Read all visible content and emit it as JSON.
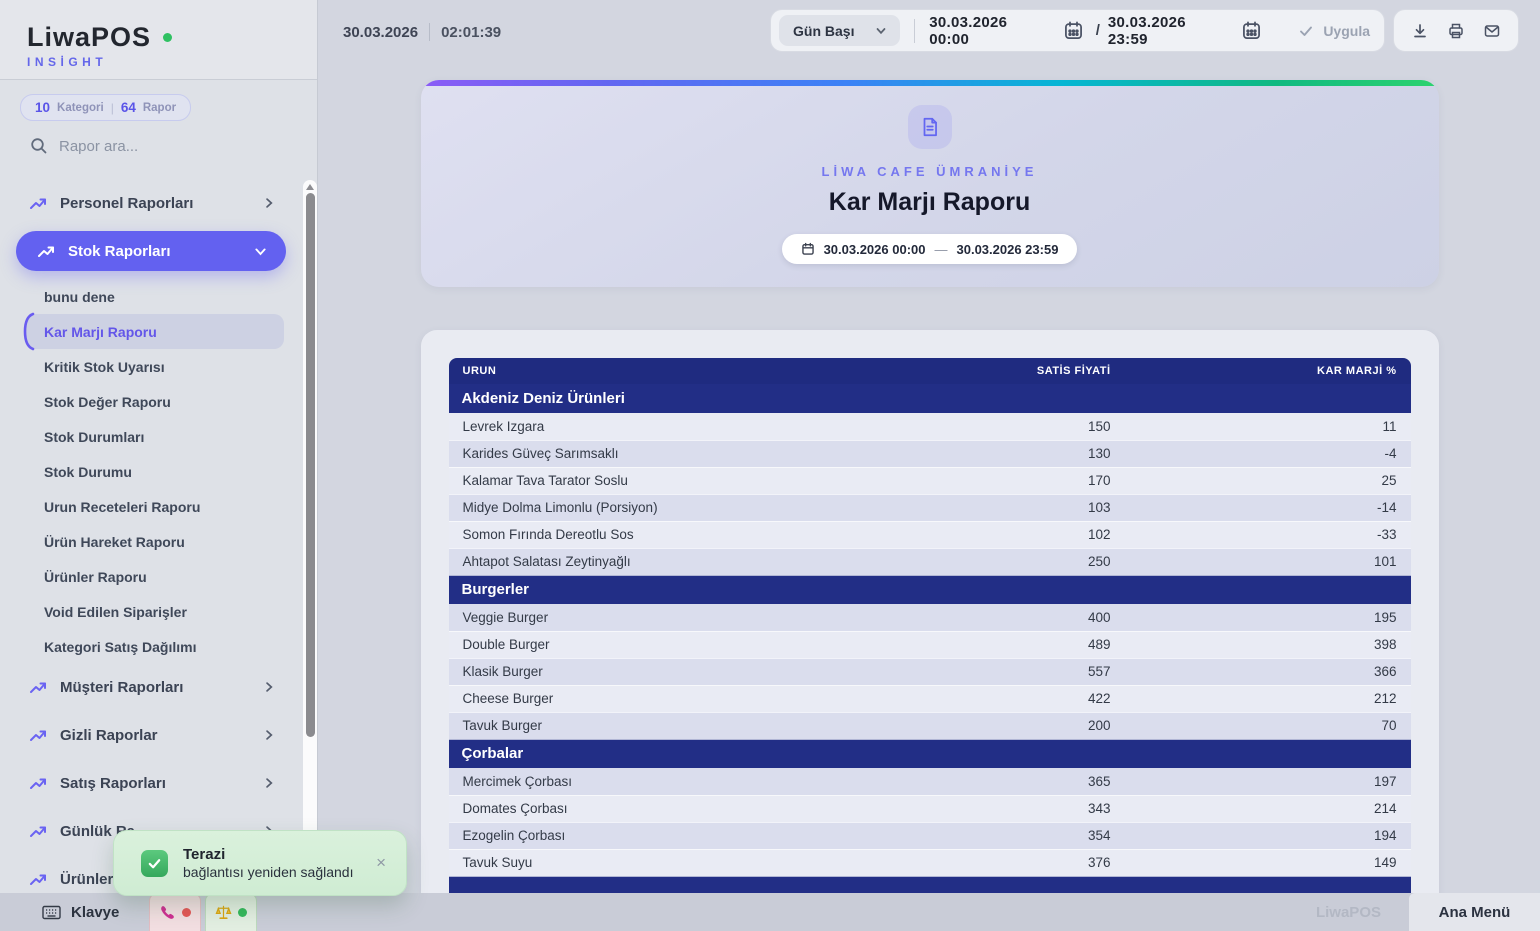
{
  "sidebar": {
    "logo": {
      "brand": "LiwaPOS",
      "sub": "INSİGHT"
    },
    "stats": {
      "categories": "10",
      "categories_label": "Kategori",
      "divider": "|",
      "reports": "64",
      "reports_label": "Rapor"
    },
    "search_placeholder": "Rapor ara...",
    "menu": [
      {
        "type": "category",
        "label": "Personel Raporları",
        "state": "collapsed"
      },
      {
        "type": "category-active",
        "label": "Stok Raporları",
        "state": "expanded"
      },
      {
        "type": "report",
        "label": "bunu dene"
      },
      {
        "type": "report-selected",
        "label": "Kar Marjı Raporu"
      },
      {
        "type": "report",
        "label": "Kritik Stok Uyarısı"
      },
      {
        "type": "report",
        "label": "Stok Değer Raporu"
      },
      {
        "type": "report",
        "label": "Stok Durumları"
      },
      {
        "type": "report",
        "label": "Stok Durumu"
      },
      {
        "type": "report",
        "label": "Urun Receteleri Raporu"
      },
      {
        "type": "report",
        "label": "Ürün Hareket Raporu"
      },
      {
        "type": "report",
        "label": "Ürünler Raporu"
      },
      {
        "type": "report",
        "label": "Void Edilen Siparişler"
      },
      {
        "type": "report",
        "label": "Kategori Satış Dağılımı"
      },
      {
        "type": "category",
        "label": "Müşteri Raporları",
        "state": "collapsed"
      },
      {
        "type": "category",
        "label": "Gizli Raporlar",
        "state": "collapsed"
      },
      {
        "type": "category",
        "label": "Satış Raporları",
        "state": "collapsed"
      },
      {
        "type": "category",
        "label": "Günlük Ra",
        "state": "collapsed"
      },
      {
        "type": "category",
        "label": "Ürünler R",
        "state": "collapsed"
      }
    ]
  },
  "topbar": {
    "date": "30.03.2026",
    "time": "02:01:39",
    "preset": "Gün Başı",
    "range_start": "30.03.2026 00:00",
    "separator": "/",
    "range_end": "30.03.2026 23:59",
    "apply_label": "Uygula"
  },
  "report": {
    "store": "LİWA CAFE ÜMRANİYE",
    "title": "Kar Marjı Raporu",
    "range_start": "30.03.2026 00:00",
    "range_dash": "—",
    "range_end": "30.03.2026 23:59"
  },
  "table": {
    "columns": [
      "URUN",
      "SATİS FİYATİ",
      "KAR MARJİ %"
    ],
    "sections": [
      {
        "category": "Akdeniz Deniz Ürünleri",
        "rows": [
          [
            "Levrek Izgara",
            "150",
            "11"
          ],
          [
            "Karides Güveç Sarımsaklı",
            "130",
            "-4"
          ],
          [
            "Kalamar Tava Tarator Soslu",
            "170",
            "25"
          ],
          [
            "Midye Dolma Limonlu (Porsiyon)",
            "103",
            "-14"
          ],
          [
            "Somon Fırında Dereotlu Sos",
            "102",
            "-33"
          ],
          [
            "Ahtapot Salatası Zeytinyağlı",
            "250",
            "101"
          ]
        ]
      },
      {
        "category": "Burgerler",
        "rows": [
          [
            "Veggie Burger",
            "400",
            "195"
          ],
          [
            "Double Burger",
            "489",
            "398"
          ],
          [
            "Klasik Burger",
            "557",
            "366"
          ],
          [
            "Cheese Burger",
            "422",
            "212"
          ],
          [
            "Tavuk Burger",
            "200",
            "70"
          ]
        ]
      },
      {
        "category": "Çorbalar",
        "rows": [
          [
            "Mercimek Çorbası",
            "365",
            "197"
          ],
          [
            "Domates Çorbası",
            "343",
            "214"
          ],
          [
            "Ezogelin Çorbası",
            "354",
            "194"
          ],
          [
            "Tavuk Suyu",
            "376",
            "149"
          ]
        ]
      },
      {
        "category": "",
        "rows": []
      }
    ]
  },
  "toast": {
    "title": "Terazi",
    "message": "bağlantısı yeniden sağlandı"
  },
  "bottombar": {
    "keyboard_label": "Klavye",
    "brand": "LiwaPOS",
    "main_menu_label": "Ana Menü"
  },
  "colors": {
    "accent": "#6361f0",
    "navy": "#1f2b80",
    "success": "#35a85c",
    "toast_bg": "#d6efd8"
  }
}
